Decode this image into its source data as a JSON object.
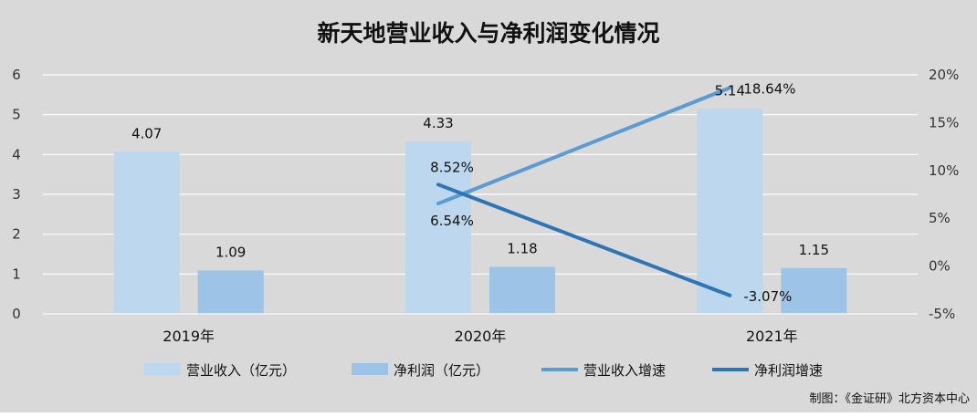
{
  "chart_data": {
    "type": "bar",
    "title": "新天地营业收入与净利润变化情况",
    "categories": [
      "2019年",
      "2020年",
      "2021年"
    ],
    "series": [
      {
        "name": "营业收入（亿元）",
        "kind": "bar",
        "axis": "left",
        "color": "#bdd7ee",
        "values": [
          4.07,
          4.33,
          5.14
        ],
        "labels": [
          "4.07",
          "4.33",
          "5.14"
        ]
      },
      {
        "name": "净利润（亿元）",
        "kind": "bar",
        "axis": "left",
        "color": "#9dc3e6",
        "values": [
          1.09,
          1.18,
          1.15
        ],
        "labels": [
          "1.09",
          "1.18",
          "1.15"
        ]
      },
      {
        "name": "营业收入增速",
        "kind": "line",
        "axis": "right",
        "color": "#5b9bd5",
        "values": [
          null,
          6.54,
          18.64
        ],
        "labels": [
          null,
          "6.54%",
          "18.64%"
        ]
      },
      {
        "name": "净利润增速",
        "kind": "line",
        "axis": "right",
        "color": "#2e75b6",
        "values": [
          null,
          8.52,
          -3.07
        ],
        "labels": [
          null,
          "8.52%",
          "-3.07%"
        ]
      }
    ],
    "y_left": {
      "range": [
        0,
        6
      ],
      "ticks": [
        "0",
        "1",
        "2",
        "3",
        "4",
        "5",
        "6"
      ]
    },
    "y_right": {
      "range": [
        -5,
        20
      ],
      "unit": "%",
      "ticks": [
        "-5%",
        "0%",
        "5%",
        "10%",
        "15%",
        "20%"
      ]
    },
    "grid": true,
    "legend_position": "bottom"
  },
  "source_note": "制图：《金证研》北方资本中心"
}
